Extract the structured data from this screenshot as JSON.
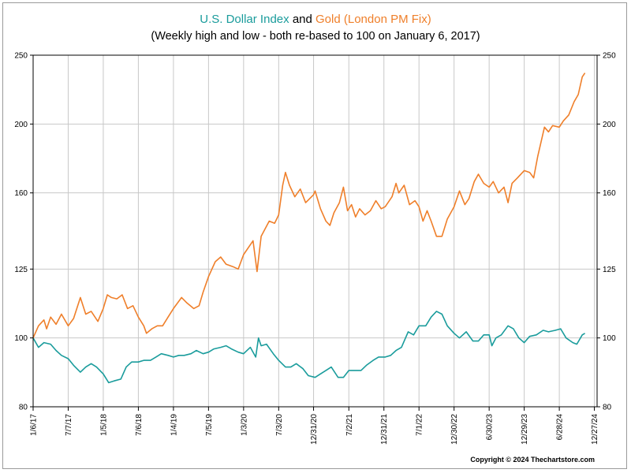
{
  "title": {
    "series1": "U.S. Dollar Index",
    "joiner": "and",
    "series2": "Gold (London PM Fix)"
  },
  "subtitle": "(Weekly high and low - both re-based to 100 on January 6, 2017)",
  "copyright": "Copyright © 2024 Thechartstore.com",
  "colors": {
    "usd": "#1a9c9c",
    "gold": "#ef7f2a",
    "grid": "#c8c8c8",
    "axis": "#000000"
  },
  "chart_data": {
    "type": "line",
    "title": "U.S. Dollar Index and Gold (London PM Fix)",
    "subtitle": "(Weekly high and low - both re-based to 100 on January 6, 2017)",
    "y_scale": "log",
    "ylim": [
      80,
      250
    ],
    "y_ticks": [
      80,
      100,
      125,
      160,
      200,
      250
    ],
    "y_axis": "both sides",
    "grid": true,
    "x_range": [
      "2017-01-06",
      "2025-01-10"
    ],
    "x_ticks": [
      {
        "date": "2017-01-06",
        "label": "1/6/17"
      },
      {
        "date": "2017-07-07",
        "label": "7/7/17"
      },
      {
        "date": "2018-01-05",
        "label": "1/5/18"
      },
      {
        "date": "2018-07-06",
        "label": "7/6/18"
      },
      {
        "date": "2019-01-04",
        "label": "1/4/19"
      },
      {
        "date": "2019-07-05",
        "label": "7/5/19"
      },
      {
        "date": "2020-01-03",
        "label": "1/3/20"
      },
      {
        "date": "2020-07-03",
        "label": "7/3/20"
      },
      {
        "date": "2020-12-31",
        "label": "12/31/20"
      },
      {
        "date": "2021-07-02",
        "label": "7/2/21"
      },
      {
        "date": "2021-12-31",
        "label": "12/31/21"
      },
      {
        "date": "2022-07-01",
        "label": "7/1/22"
      },
      {
        "date": "2022-12-30",
        "label": "12/30/22"
      },
      {
        "date": "2023-06-30",
        "label": "6/30/23"
      },
      {
        "date": "2023-12-29",
        "label": "12/29/23"
      },
      {
        "date": "2024-06-28",
        "label": "6/28/24"
      },
      {
        "date": "2024-12-27",
        "label": "12/27/24"
      }
    ],
    "series": [
      {
        "name": "U.S. Dollar Index",
        "color": "#1a9c9c",
        "points": [
          [
            "2017-01-06",
            100
          ],
          [
            "2017-02-03",
            97
          ],
          [
            "2017-03-03",
            98.5
          ],
          [
            "2017-04-07",
            98
          ],
          [
            "2017-05-05",
            96
          ],
          [
            "2017-06-02",
            94.5
          ],
          [
            "2017-07-07",
            93.5
          ],
          [
            "2017-08-04",
            91.5
          ],
          [
            "2017-09-08",
            89.5
          ],
          [
            "2017-10-06",
            91
          ],
          [
            "2017-11-03",
            92
          ],
          [
            "2017-12-01",
            91
          ],
          [
            "2018-01-05",
            89
          ],
          [
            "2018-02-02",
            86.5
          ],
          [
            "2018-03-02",
            87
          ],
          [
            "2018-04-06",
            87.5
          ],
          [
            "2018-05-04",
            91
          ],
          [
            "2018-06-01",
            92.5
          ],
          [
            "2018-07-06",
            92.5
          ],
          [
            "2018-08-03",
            93
          ],
          [
            "2018-09-07",
            93
          ],
          [
            "2018-10-05",
            94
          ],
          [
            "2018-11-02",
            95
          ],
          [
            "2018-12-07",
            94.5
          ],
          [
            "2019-01-04",
            94
          ],
          [
            "2019-02-01",
            94.5
          ],
          [
            "2019-03-01",
            94.5
          ],
          [
            "2019-04-05",
            95
          ],
          [
            "2019-05-03",
            96
          ],
          [
            "2019-06-07",
            95
          ],
          [
            "2019-07-05",
            95.5
          ],
          [
            "2019-08-02",
            96.5
          ],
          [
            "2019-09-06",
            97
          ],
          [
            "2019-10-04",
            97.5
          ],
          [
            "2019-11-01",
            96.5
          ],
          [
            "2019-12-06",
            95.5
          ],
          [
            "2020-01-03",
            95
          ],
          [
            "2020-02-07",
            97
          ],
          [
            "2020-03-06",
            94
          ],
          [
            "2020-03-20",
            100
          ],
          [
            "2020-04-03",
            97.5
          ],
          [
            "2020-05-01",
            98
          ],
          [
            "2020-06-05",
            95
          ],
          [
            "2020-07-03",
            93
          ],
          [
            "2020-08-07",
            91
          ],
          [
            "2020-09-04",
            91
          ],
          [
            "2020-10-02",
            92
          ],
          [
            "2020-11-06",
            90.5
          ],
          [
            "2020-12-04",
            88.5
          ],
          [
            "2021-01-08",
            88
          ],
          [
            "2021-02-05",
            89
          ],
          [
            "2021-03-05",
            90
          ],
          [
            "2021-04-02",
            91
          ],
          [
            "2021-05-07",
            88
          ],
          [
            "2021-06-04",
            88
          ],
          [
            "2021-07-02",
            90
          ],
          [
            "2021-08-06",
            90
          ],
          [
            "2021-09-03",
            90
          ],
          [
            "2021-10-01",
            91.5
          ],
          [
            "2021-11-05",
            93
          ],
          [
            "2021-12-03",
            94
          ],
          [
            "2022-01-07",
            94
          ],
          [
            "2022-02-04",
            94.5
          ],
          [
            "2022-03-04",
            96
          ],
          [
            "2022-04-01",
            97
          ],
          [
            "2022-05-06",
            102
          ],
          [
            "2022-06-03",
            101
          ],
          [
            "2022-07-01",
            104
          ],
          [
            "2022-08-05",
            104
          ],
          [
            "2022-09-02",
            107
          ],
          [
            "2022-09-30",
            109
          ],
          [
            "2022-10-28",
            108
          ],
          [
            "2022-11-25",
            104
          ],
          [
            "2022-12-30",
            101.5
          ],
          [
            "2023-01-27",
            100
          ],
          [
            "2023-03-03",
            102
          ],
          [
            "2023-04-07",
            99
          ],
          [
            "2023-05-05",
            99
          ],
          [
            "2023-06-02",
            101
          ],
          [
            "2023-06-30",
            101
          ],
          [
            "2023-07-14",
            97.5
          ],
          [
            "2023-08-04",
            100
          ],
          [
            "2023-09-01",
            101
          ],
          [
            "2023-10-06",
            104
          ],
          [
            "2023-11-03",
            103
          ],
          [
            "2023-12-01",
            100
          ],
          [
            "2023-12-29",
            98.5
          ],
          [
            "2024-01-26",
            100.5
          ],
          [
            "2024-03-01",
            101
          ],
          [
            "2024-04-05",
            102.5
          ],
          [
            "2024-05-03",
            102
          ],
          [
            "2024-06-07",
            102.5
          ],
          [
            "2024-07-05",
            103
          ],
          [
            "2024-08-02",
            100
          ],
          [
            "2024-09-06",
            98.5
          ],
          [
            "2024-09-27",
            98
          ],
          [
            "2024-10-25",
            101
          ],
          [
            "2024-11-08",
            101.5
          ]
        ]
      },
      {
        "name": "Gold (London PM Fix)",
        "color": "#ef7f2a",
        "points": [
          [
            "2017-01-06",
            100
          ],
          [
            "2017-02-03",
            104
          ],
          [
            "2017-03-03",
            106
          ],
          [
            "2017-03-17",
            103
          ],
          [
            "2017-04-07",
            107
          ],
          [
            "2017-05-05",
            104.5
          ],
          [
            "2017-06-02",
            108
          ],
          [
            "2017-07-07",
            104
          ],
          [
            "2017-08-04",
            106.5
          ],
          [
            "2017-09-08",
            114
          ],
          [
            "2017-10-06",
            108
          ],
          [
            "2017-11-03",
            109
          ],
          [
            "2017-12-08",
            105.5
          ],
          [
            "2018-01-05",
            110
          ],
          [
            "2018-01-26",
            115
          ],
          [
            "2018-02-16",
            114
          ],
          [
            "2018-03-16",
            113.5
          ],
          [
            "2018-04-13",
            115
          ],
          [
            "2018-05-11",
            110
          ],
          [
            "2018-06-08",
            111
          ],
          [
            "2018-07-06",
            107
          ],
          [
            "2018-08-03",
            104
          ],
          [
            "2018-08-17",
            101.5
          ],
          [
            "2018-09-14",
            103
          ],
          [
            "2018-10-12",
            104
          ],
          [
            "2018-11-09",
            104
          ],
          [
            "2018-12-07",
            107
          ],
          [
            "2019-01-04",
            110
          ],
          [
            "2019-02-15",
            114
          ],
          [
            "2019-03-15",
            112
          ],
          [
            "2019-04-19",
            110
          ],
          [
            "2019-05-17",
            111
          ],
          [
            "2019-06-07",
            116
          ],
          [
            "2019-07-05",
            122
          ],
          [
            "2019-08-09",
            128
          ],
          [
            "2019-09-06",
            130
          ],
          [
            "2019-10-04",
            127
          ],
          [
            "2019-11-08",
            126
          ],
          [
            "2019-12-06",
            125
          ],
          [
            "2020-01-03",
            131
          ],
          [
            "2020-02-21",
            137
          ],
          [
            "2020-03-13",
            124
          ],
          [
            "2020-04-03",
            139
          ],
          [
            "2020-05-15",
            146
          ],
          [
            "2020-06-12",
            145
          ],
          [
            "2020-07-03",
            149
          ],
          [
            "2020-07-24",
            164
          ],
          [
            "2020-08-07",
            171
          ],
          [
            "2020-08-28",
            164
          ],
          [
            "2020-09-25",
            158
          ],
          [
            "2020-10-23",
            162
          ],
          [
            "2020-11-20",
            155
          ],
          [
            "2020-12-31",
            159
          ],
          [
            "2021-01-08",
            161
          ],
          [
            "2021-02-05",
            152
          ],
          [
            "2021-03-05",
            146
          ],
          [
            "2021-03-26",
            144
          ],
          [
            "2021-04-16",
            150
          ],
          [
            "2021-05-14",
            155
          ],
          [
            "2021-06-04",
            163
          ],
          [
            "2021-06-25",
            151
          ],
          [
            "2021-07-16",
            154
          ],
          [
            "2021-08-06",
            148
          ],
          [
            "2021-08-27",
            152
          ],
          [
            "2021-09-24",
            149
          ],
          [
            "2021-10-22",
            151
          ],
          [
            "2021-11-19",
            156
          ],
          [
            "2021-12-17",
            152
          ],
          [
            "2022-01-07",
            153
          ],
          [
            "2022-02-11",
            158
          ],
          [
            "2022-03-04",
            165
          ],
          [
            "2022-03-18",
            160
          ],
          [
            "2022-04-15",
            164
          ],
          [
            "2022-05-13",
            154
          ],
          [
            "2022-06-10",
            156
          ],
          [
            "2022-07-01",
            153
          ],
          [
            "2022-07-22",
            146
          ],
          [
            "2022-08-12",
            151
          ],
          [
            "2022-09-02",
            146
          ],
          [
            "2022-09-30",
            139
          ],
          [
            "2022-10-28",
            139
          ],
          [
            "2022-11-25",
            147
          ],
          [
            "2022-12-30",
            153
          ],
          [
            "2023-01-27",
            161
          ],
          [
            "2023-02-24",
            154
          ],
          [
            "2023-03-17",
            157
          ],
          [
            "2023-04-14",
            166
          ],
          [
            "2023-05-05",
            170
          ],
          [
            "2023-06-02",
            165
          ],
          [
            "2023-06-30",
            163
          ],
          [
            "2023-07-21",
            166
          ],
          [
            "2023-08-18",
            160
          ],
          [
            "2023-09-15",
            163
          ],
          [
            "2023-10-06",
            155
          ],
          [
            "2023-10-27",
            165
          ],
          [
            "2023-11-24",
            168
          ],
          [
            "2023-12-29",
            172
          ],
          [
            "2024-01-26",
            171
          ],
          [
            "2024-02-16",
            168
          ],
          [
            "2024-03-08",
            180
          ],
          [
            "2024-04-12",
            198
          ],
          [
            "2024-05-03",
            195
          ],
          [
            "2024-05-24",
            199
          ],
          [
            "2024-06-28",
            198
          ],
          [
            "2024-07-19",
            202
          ],
          [
            "2024-08-16",
            206
          ],
          [
            "2024-09-13",
            215
          ],
          [
            "2024-10-04",
            220
          ],
          [
            "2024-10-25",
            233
          ],
          [
            "2024-11-08",
            236
          ]
        ]
      }
    ]
  }
}
